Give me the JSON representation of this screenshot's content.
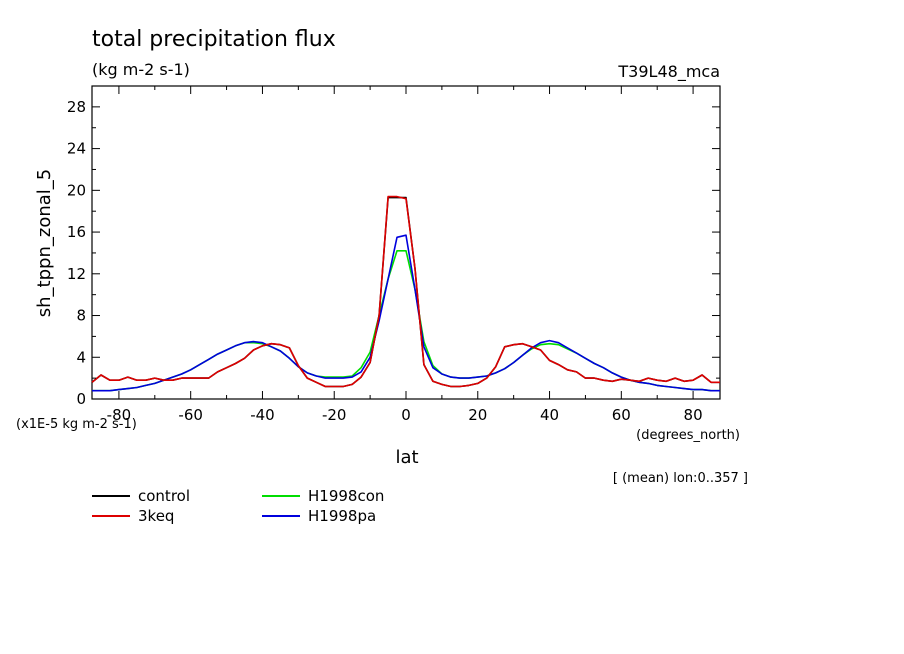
{
  "chart_data": {
    "type": "line",
    "title": "total precipitation flux",
    "subtitle": "(kg m-2 s-1)",
    "experiment": "T39L48_mca",
    "ylabel": "sh_tppn_zonal_5",
    "yunits": "(x1E-5 kg m-2 s-1)",
    "xlabel": "lat",
    "xunits": "(degrees_north)",
    "footnote": "[ (mean) lon:0..357 ]",
    "xlim": [
      -87.5,
      87.5
    ],
    "ylim": [
      0,
      30
    ],
    "x_ticks": [
      -80,
      -60,
      -40,
      -20,
      0,
      20,
      40,
      60,
      80
    ],
    "x_tick_labels": [
      "-80",
      "-60",
      "-40",
      "-20",
      "0",
      "20",
      "40",
      "60",
      "80"
    ],
    "y_ticks": [
      0,
      4,
      8,
      12,
      16,
      20,
      24,
      28
    ],
    "y_tick_labels": [
      "0",
      "4",
      "8",
      "12",
      "16",
      "20",
      "24",
      "28"
    ],
    "grid": false,
    "legend_position": "bottom-left",
    "x": [
      -87.5,
      -85,
      -82.5,
      -80,
      -77.5,
      -75,
      -72.5,
      -70,
      -67.5,
      -65,
      -62.5,
      -60,
      -57.5,
      -55,
      -52.5,
      -50,
      -47.5,
      -45,
      -42.5,
      -40,
      -37.5,
      -35,
      -32.5,
      -30,
      -27.5,
      -25,
      -22.5,
      -20,
      -17.5,
      -15,
      -12.5,
      -10,
      -7.5,
      -5,
      -2.5,
      0,
      2.5,
      5,
      7.5,
      10,
      12.5,
      15,
      17.5,
      20,
      22.5,
      25,
      27.5,
      30,
      32.5,
      35,
      37.5,
      40,
      42.5,
      45,
      47.5,
      50,
      52.5,
      55,
      57.5,
      60,
      62.5,
      65,
      67.5,
      70,
      72.5,
      75,
      77.5,
      80,
      82.5,
      85,
      87.5
    ],
    "series": [
      {
        "name": "control",
        "color": "#000000",
        "values": [
          1.6,
          2.3,
          1.8,
          1.8,
          2.1,
          1.8,
          1.8,
          2.0,
          1.8,
          1.8,
          2.0,
          2.0,
          2.0,
          2.0,
          2.6,
          3.0,
          3.4,
          3.9,
          4.7,
          5.1,
          5.3,
          5.2,
          4.9,
          3.2,
          2.0,
          1.6,
          1.2,
          1.2,
          1.2,
          1.4,
          2.1,
          3.5,
          8.0,
          19.3,
          19.3,
          19.3,
          12.5,
          3.3,
          1.7,
          1.4,
          1.2,
          1.2,
          1.3,
          1.5,
          2.0,
          3.1,
          5.0,
          5.2,
          5.3,
          5.0,
          4.7,
          3.7,
          3.3,
          2.8,
          2.6,
          2.0,
          2.0,
          1.8,
          1.7,
          1.9,
          1.8,
          1.7,
          2.0,
          1.8,
          1.7,
          2.0,
          1.7,
          1.8,
          2.3,
          1.6,
          1.6
        ]
      },
      {
        "name": "3keq",
        "color": "#dd0000",
        "values": [
          1.6,
          2.3,
          1.8,
          1.8,
          2.1,
          1.8,
          1.8,
          2.0,
          1.8,
          1.8,
          2.0,
          2.0,
          2.0,
          2.0,
          2.6,
          3.0,
          3.4,
          3.9,
          4.7,
          5.1,
          5.3,
          5.2,
          4.9,
          3.2,
          2.0,
          1.6,
          1.2,
          1.2,
          1.2,
          1.4,
          2.1,
          3.5,
          8.0,
          19.4,
          19.4,
          19.2,
          12.5,
          3.3,
          1.7,
          1.4,
          1.2,
          1.2,
          1.3,
          1.5,
          2.0,
          3.1,
          5.0,
          5.2,
          5.3,
          5.0,
          4.7,
          3.7,
          3.3,
          2.8,
          2.6,
          2.0,
          2.0,
          1.8,
          1.7,
          1.9,
          1.8,
          1.7,
          2.0,
          1.8,
          1.7,
          2.0,
          1.7,
          1.8,
          2.3,
          1.6,
          1.6
        ]
      },
      {
        "name": "H1998con",
        "color": "#00dd00",
        "values": [
          0.8,
          0.8,
          0.8,
          0.9,
          1.0,
          1.1,
          1.3,
          1.5,
          1.8,
          2.1,
          2.4,
          2.8,
          3.3,
          3.8,
          4.3,
          4.7,
          5.1,
          5.4,
          5.4,
          5.3,
          5.0,
          4.6,
          3.9,
          3.1,
          2.5,
          2.2,
          2.1,
          2.1,
          2.1,
          2.2,
          3.0,
          4.5,
          8.0,
          11.5,
          14.2,
          14.2,
          10.5,
          5.5,
          3.2,
          2.4,
          2.1,
          2.0,
          2.0,
          2.1,
          2.2,
          2.5,
          2.9,
          3.5,
          4.2,
          4.8,
          5.2,
          5.3,
          5.2,
          4.8,
          4.4,
          3.9,
          3.4,
          3.0,
          2.5,
          2.1,
          1.8,
          1.6,
          1.5,
          1.3,
          1.2,
          1.1,
          1.0,
          0.9,
          0.9,
          0.8,
          0.8
        ]
      },
      {
        "name": "H1998pa",
        "color": "#0000dd",
        "values": [
          0.8,
          0.8,
          0.8,
          0.9,
          1.0,
          1.1,
          1.3,
          1.5,
          1.8,
          2.1,
          2.4,
          2.8,
          3.3,
          3.8,
          4.3,
          4.7,
          5.1,
          5.4,
          5.5,
          5.4,
          5.0,
          4.6,
          3.9,
          3.1,
          2.5,
          2.2,
          2.0,
          2.0,
          2.0,
          2.1,
          2.6,
          4.0,
          7.5,
          11.5,
          15.5,
          15.7,
          10.5,
          5.0,
          3.0,
          2.4,
          2.1,
          2.0,
          2.0,
          2.1,
          2.2,
          2.5,
          2.9,
          3.5,
          4.2,
          4.9,
          5.4,
          5.6,
          5.4,
          4.9,
          4.4,
          3.9,
          3.4,
          3.0,
          2.5,
          2.1,
          1.8,
          1.6,
          1.5,
          1.3,
          1.2,
          1.1,
          1.0,
          0.9,
          0.9,
          0.8,
          0.8
        ]
      }
    ]
  }
}
